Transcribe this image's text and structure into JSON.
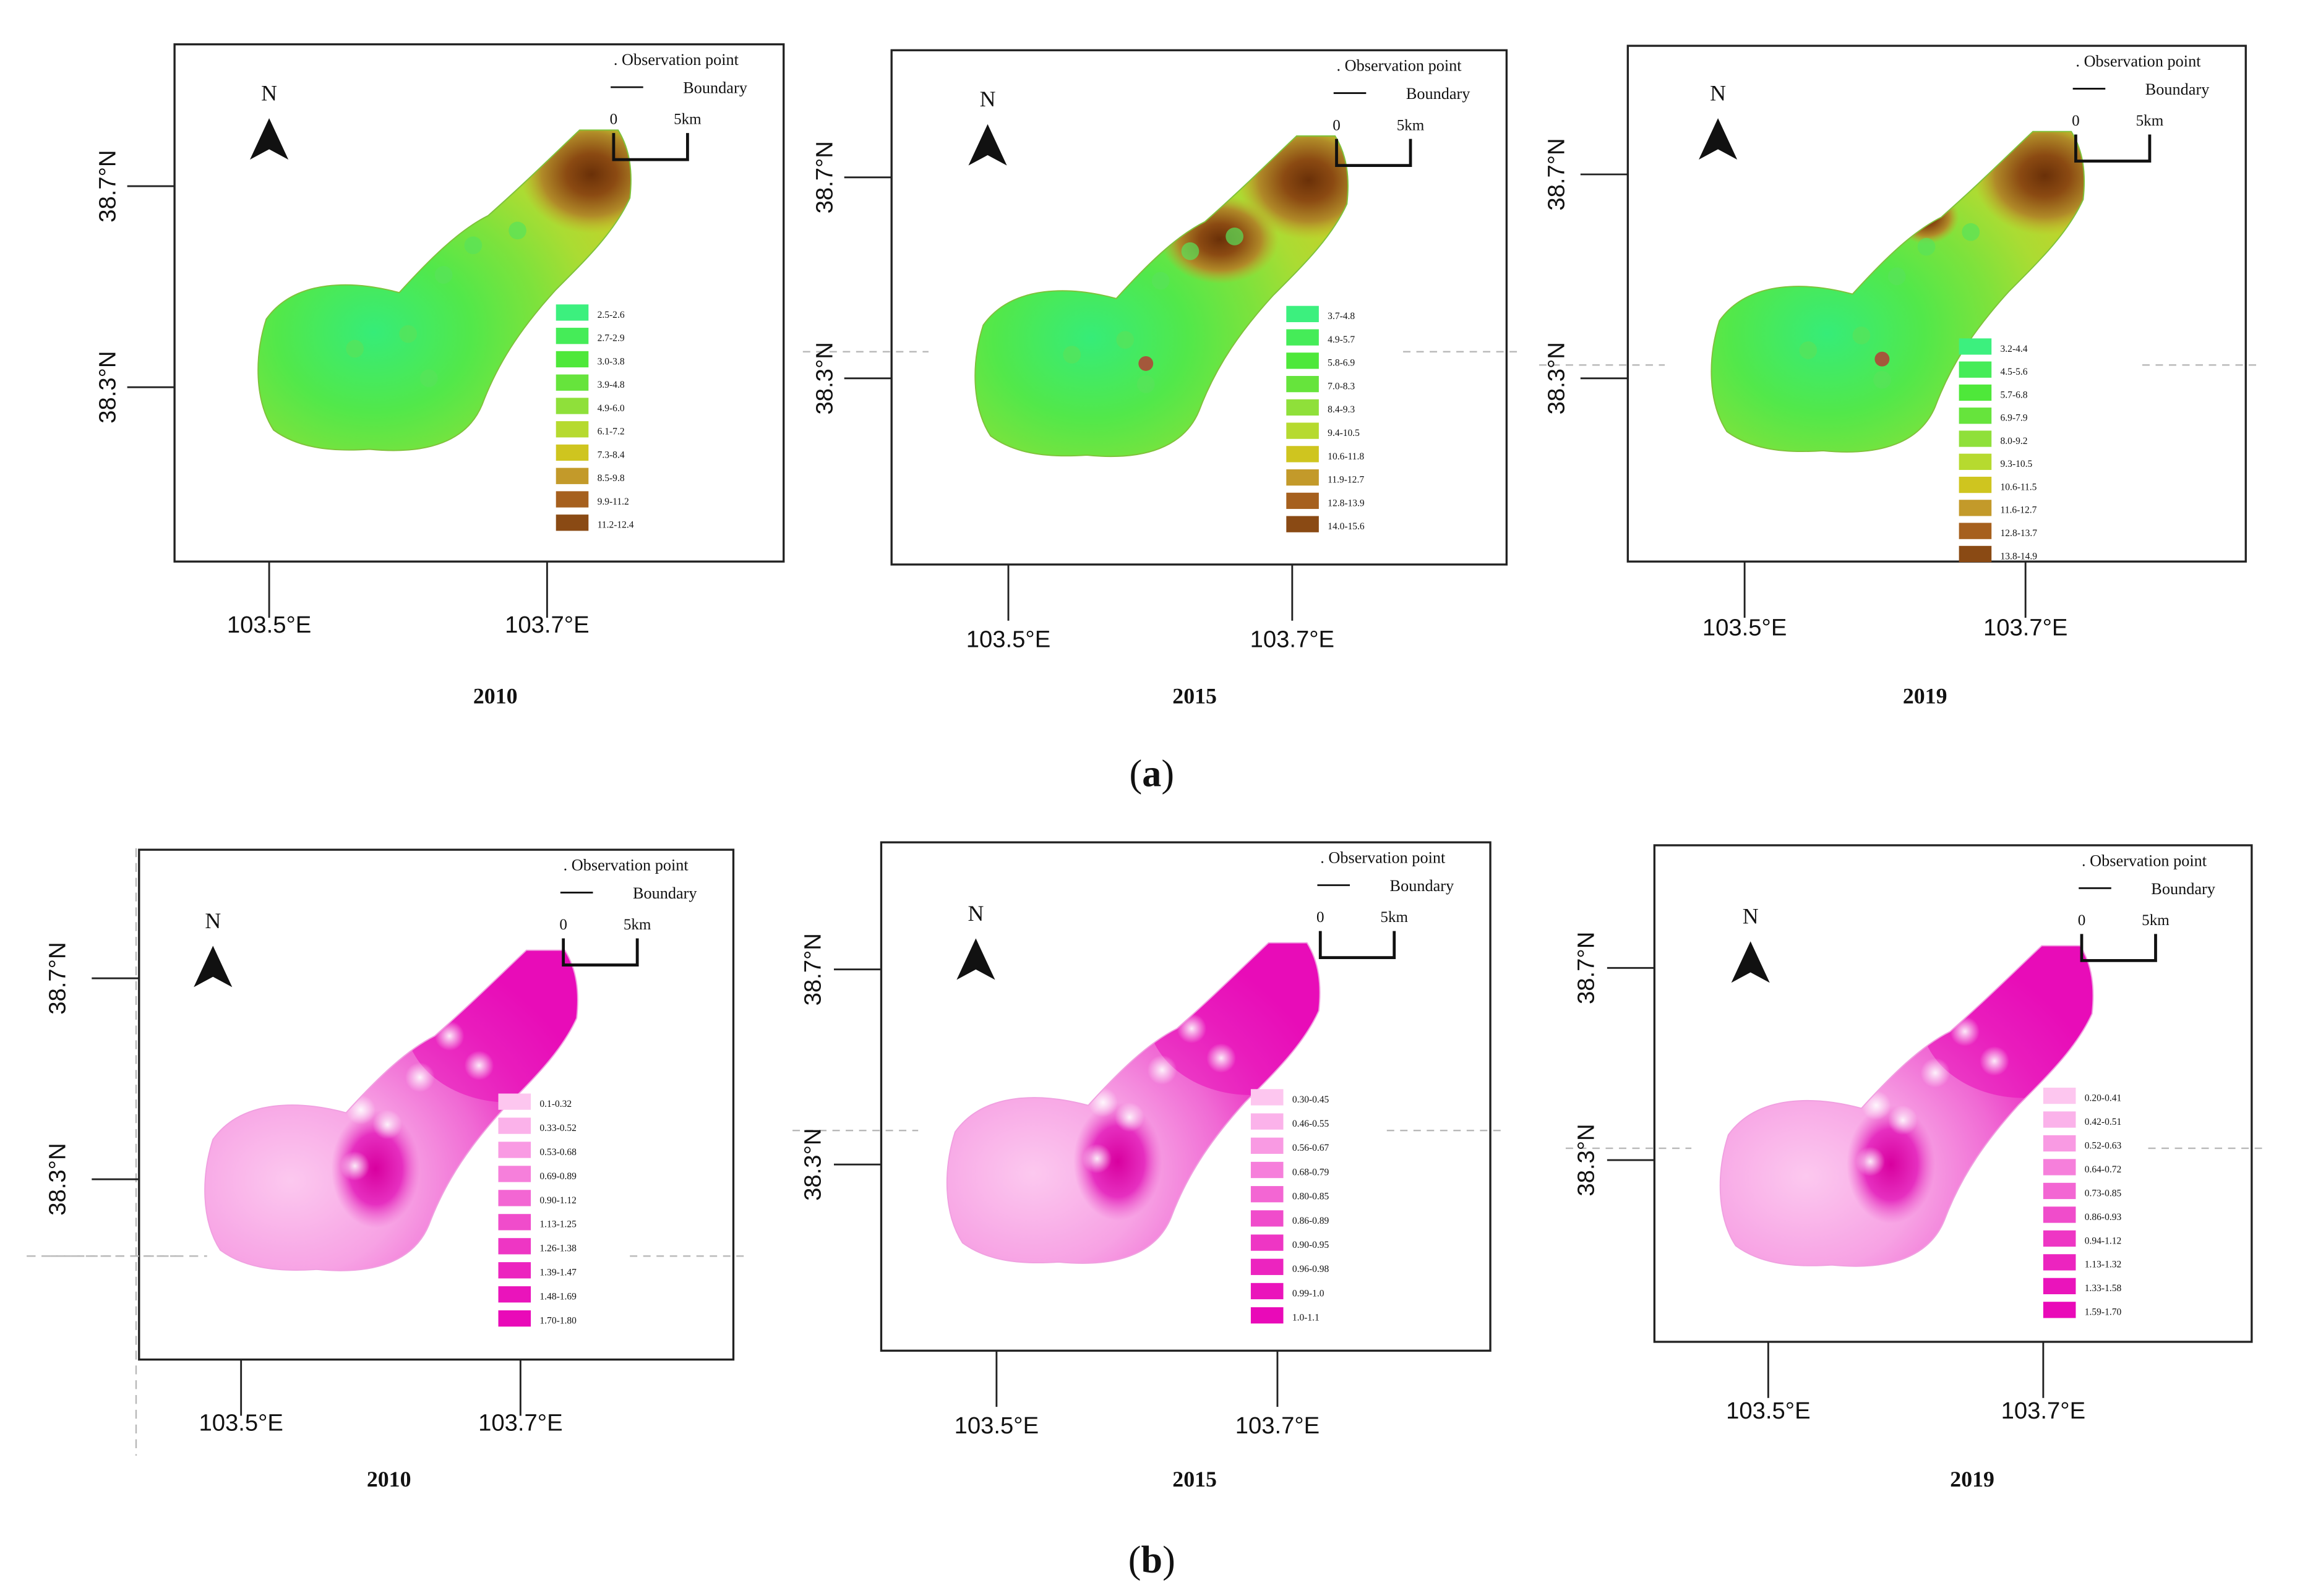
{
  "figure": {
    "north_label": "N",
    "legend_observation": ". Observation point",
    "legend_boundary": "Boundary",
    "scale_zero": "0",
    "scale_dist": "5km",
    "lat_top": "38.7°N",
    "lat_bottom": "38.3°N",
    "lon_left": "103.5°E",
    "lon_right": "103.7°E"
  },
  "rows": [
    {
      "label": "(a)",
      "label_prefix": "(",
      "label_letter": "a",
      "label_suffix": ")",
      "panels": [
        {
          "year": "2010",
          "classes": [
            "2.5-2.6",
            "2.7-2.9",
            "3.0-3.8",
            "3.9-4.8",
            "4.9-6.0",
            "6.1-7.2",
            "7.3-8.4",
            "8.5-9.8",
            "9.9-11.2",
            "11.2-12.4"
          ]
        },
        {
          "year": "2015",
          "classes": [
            "3.7-4.8",
            "4.9-5.7",
            "5.8-6.9",
            "7.0-8.3",
            "8.4-9.3",
            "9.4-10.5",
            "10.6-11.8",
            "11.9-12.7",
            "12.8-13.9",
            "14.0-15.6"
          ]
        },
        {
          "year": "2019",
          "classes": [
            "3.2-4.4",
            "4.5-5.6",
            "5.7-6.8",
            "6.9-7.9",
            "8.0-9.2",
            "9.3-10.5",
            "10.6-11.5",
            "11.6-12.7",
            "12.8-13.7",
            "13.8-14.9"
          ]
        }
      ]
    },
    {
      "label": "(b)",
      "label_prefix": "(",
      "label_letter": "b",
      "label_suffix": ")",
      "panels": [
        {
          "year": "2010",
          "classes": [
            "0.1-0.32",
            "0.33-0.52",
            "0.53-0.68",
            "0.69-0.89",
            "0.90-1.12",
            "1.13-1.25",
            "1.26-1.38",
            "1.39-1.47",
            "1.48-1.69",
            "1.70-1.80"
          ]
        },
        {
          "year": "2015",
          "classes": [
            "0.30-0.45",
            "0.46-0.55",
            "0.56-0.67",
            "0.68-0.79",
            "0.80-0.85",
            "0.86-0.89",
            "0.90-0.95",
            "0.96-0.98",
            "0.99-1.0",
            "1.0-1.1"
          ]
        },
        {
          "year": "2019",
          "classes": [
            "0.20-0.41",
            "0.42-0.51",
            "0.52-0.63",
            "0.64-0.72",
            "0.73-0.85",
            "0.86-0.93",
            "0.94-1.12",
            "1.13-1.32",
            "1.33-1.58",
            "1.59-1.70"
          ]
        }
      ]
    }
  ],
  "colors": {
    "green_ramp": [
      "#3cf07e",
      "#45ec58",
      "#4ee83a",
      "#66e43c",
      "#8fe03a",
      "#b6da2f",
      "#cfc51f",
      "#c39a2a",
      "#a6601e",
      "#8a4a14"
    ],
    "pink_ramp": [
      "#fdc6ef",
      "#fbb2ea",
      "#f99ae3",
      "#f67fdb",
      "#f366d3",
      "#f04ccb",
      "#ee36c4",
      "#ec24bf",
      "#ea14bb",
      "#e90ab8"
    ]
  }
}
